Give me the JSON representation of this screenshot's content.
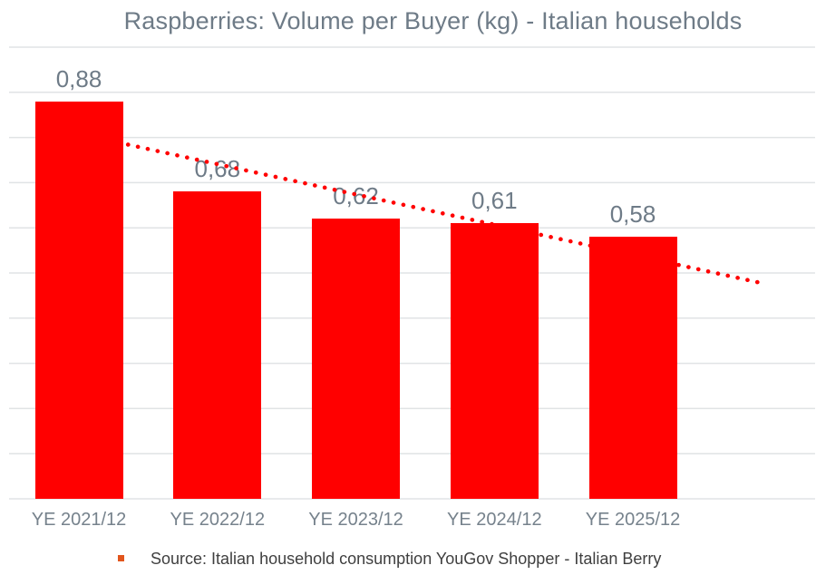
{
  "header": {
    "title": "Raspberries: Volume per Buyer (kg) - Italian households"
  },
  "chart_data": {
    "type": "bar",
    "title": "Raspberries: Volume per Buyer (kg) - Italian households",
    "categories": [
      "YE 2021/12",
      "YE 2022/12",
      "YE 2023/12",
      "YE 2024/12",
      "YE 2025/12"
    ],
    "values": [
      0.88,
      0.68,
      0.62,
      0.61,
      0.58
    ],
    "value_labels": [
      "0,88",
      "0,68",
      "0,62",
      "0,61",
      "0,58"
    ],
    "xlabel": "",
    "ylabel": "",
    "ylim": [
      0,
      1.0
    ],
    "gridline_step": 0.1,
    "grid": true,
    "y_axis_labels_visible": false,
    "legend_position": "none",
    "bar_color": "#FF0000",
    "trendline": {
      "type": "linear",
      "style": "dotted",
      "color": "#FF0000",
      "forward_forecast_periods": 0.95
    }
  },
  "footnote": {
    "text": "Source: Italian household consumption YouGov Shopper - Italian Berry",
    "bullet_color": "#E2551C"
  },
  "colors": {
    "background": "#FFFFFF",
    "title_text": "#6E7B87",
    "value_label_text": "#6E7B87",
    "category_label_text": "#76828C",
    "gridline": "#E0E3E5",
    "footnote_text": "#3F3F3F"
  }
}
